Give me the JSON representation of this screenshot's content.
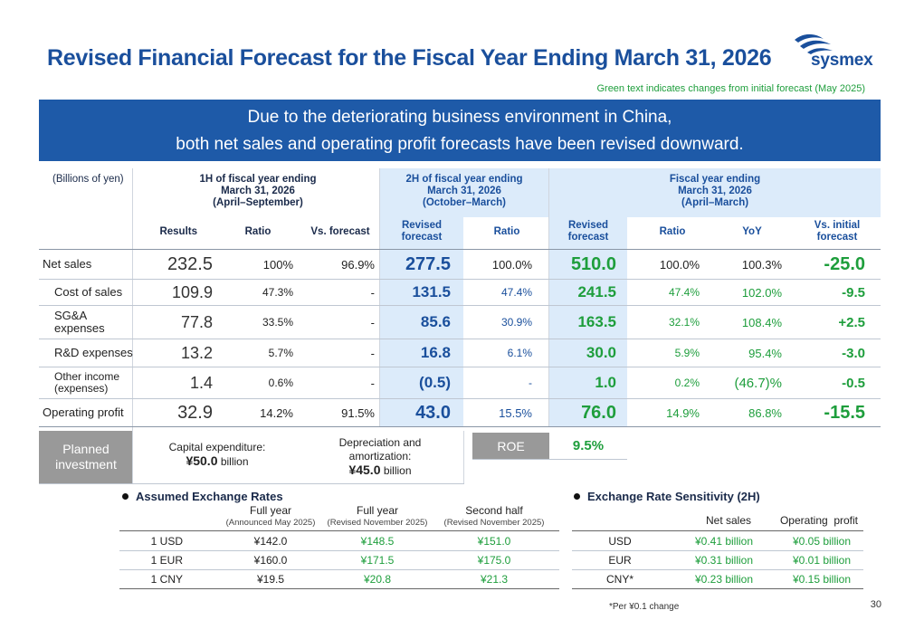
{
  "title": "Revised Financial Forecast for the Fiscal Year Ending March 31, 2026",
  "logo": {
    "text": "sysmex",
    "icon": "sysmex-logo-icon"
  },
  "note": "Green text indicates changes from initial forecast (May 2025)",
  "banner": {
    "line1": "Due to the deteriorating business environment in China,",
    "line2": "both net sales and operating profit forecasts have been revised downward."
  },
  "table": {
    "unit": "(Billions of yen)",
    "groups": {
      "h1": [
        "1H of fiscal year ending",
        "March 31, 2026",
        "(April–September)"
      ],
      "h2": [
        "2H of fiscal year ending",
        "March 31, 2026",
        "(October–March)"
      ],
      "fy": [
        "Fiscal year ending",
        "March 31, 2026",
        "(April–March)"
      ]
    },
    "subheaders": {
      "results": "Results",
      "ratio1": "Ratio",
      "vs_forecast": "Vs. forecast",
      "revised1": [
        "Revised",
        "forecast"
      ],
      "ratio2": "Ratio",
      "revised2": [
        "Revised",
        "forecast"
      ],
      "ratio3": "Ratio",
      "yoy": "YoY",
      "vs_initial": [
        "Vs. initial",
        "forecast"
      ]
    },
    "rows": [
      {
        "label": [
          "Net sales"
        ],
        "results": "232.5",
        "ratio1": "100%",
        "vs_forecast": "96.9%",
        "h2_revised": "277.5",
        "h2_ratio": "100.0%",
        "fy_revised": "510.0",
        "fy_ratio": "100.0%",
        "yoy": "100.3%",
        "vs_initial": "-25.0"
      },
      {
        "label": [
          "Cost of sales"
        ],
        "results": "109.9",
        "ratio1": "47.3%",
        "vs_forecast": "-",
        "h2_revised": "131.5",
        "h2_ratio": "47.4%",
        "fy_revised": "241.5",
        "fy_ratio": "47.4%",
        "yoy": "102.0%",
        "vs_initial": "-9.5"
      },
      {
        "label": [
          "SG&A",
          "expenses"
        ],
        "results": "77.8",
        "ratio1": "33.5%",
        "vs_forecast": "-",
        "h2_revised": "85.6",
        "h2_ratio": "30.9%",
        "fy_revised": "163.5",
        "fy_ratio": "32.1%",
        "yoy": "108.4%",
        "vs_initial": "+2.5"
      },
      {
        "label": [
          "R&D expenses"
        ],
        "results": "13.2",
        "ratio1": "5.7%",
        "vs_forecast": "-",
        "h2_revised": "16.8",
        "h2_ratio": "6.1%",
        "fy_revised": "30.0",
        "fy_ratio": "5.9%",
        "yoy": "95.4%",
        "vs_initial": "-3.0"
      },
      {
        "label": [
          "Other income",
          "(expenses)"
        ],
        "results": "1.4",
        "ratio1": "0.6%",
        "vs_forecast": "-",
        "h2_revised": "(0.5)",
        "h2_ratio": "-",
        "fy_revised": "1.0",
        "fy_ratio": "0.2%",
        "yoy": "(46.7)%",
        "vs_initial": "-0.5"
      },
      {
        "label": [
          "Operating profit"
        ],
        "results": "32.9",
        "ratio1": "14.2%",
        "vs_forecast": "91.5%",
        "h2_revised": "43.0",
        "h2_ratio": "15.5%",
        "fy_revised": "76.0",
        "fy_ratio": "14.9%",
        "yoy": "86.8%",
        "vs_initial": "-15.5"
      }
    ]
  },
  "investment": {
    "label": [
      "Planned",
      "investment"
    ],
    "capex_label": "Capital expenditure:",
    "capex_value": "¥50.0",
    "capex_unit": "billion",
    "dep_label": [
      "Depreciation and",
      "amortization:"
    ],
    "dep_value": "¥45.0",
    "dep_unit": "billion",
    "roe_label": "ROE",
    "roe_value": "9.5%"
  },
  "exchange": {
    "title": "Assumed Exchange Rates",
    "headers": [
      {
        "main": "Full year",
        "sub": "(Announced May 2025)"
      },
      {
        "main": "Full year",
        "sub": "(Revised November 2025)"
      },
      {
        "main": "Second half",
        "sub": "(Revised November 2025)"
      }
    ],
    "rows": [
      {
        "currency": "1 USD",
        "announced": "¥142.0",
        "revised_fy": "¥148.5",
        "revised_2h": "¥151.0"
      },
      {
        "currency": "1 EUR",
        "announced": "¥160.0",
        "revised_fy": "¥171.5",
        "revised_2h": "¥175.0"
      },
      {
        "currency": "1 CNY",
        "announced": "¥19.5",
        "revised_fy": "¥20.8",
        "revised_2h": "¥21.3"
      }
    ]
  },
  "sensitivity": {
    "title": "Exchange Rate Sensitivity (2H)",
    "headers": [
      "Net sales",
      "Operating  profit"
    ],
    "rows": [
      {
        "currency": "USD",
        "net_sales": "¥0.41 billion",
        "op_profit": "¥0.05 billion"
      },
      {
        "currency": "EUR",
        "net_sales": "¥0.31 billion",
        "op_profit": "¥0.01 billion"
      },
      {
        "currency": "CNY*",
        "net_sales": "¥0.23 billion",
        "op_profit": "¥0.15 billion"
      }
    ],
    "footnote": "*Per ¥0.1 change"
  },
  "page_number": "30",
  "colors": {
    "brand_blue": "#1a4f9c",
    "banner_blue": "#1e5aa8",
    "change_green": "#1e9e3c",
    "highlight": "#dcebfa",
    "gray_box": "#999999"
  }
}
